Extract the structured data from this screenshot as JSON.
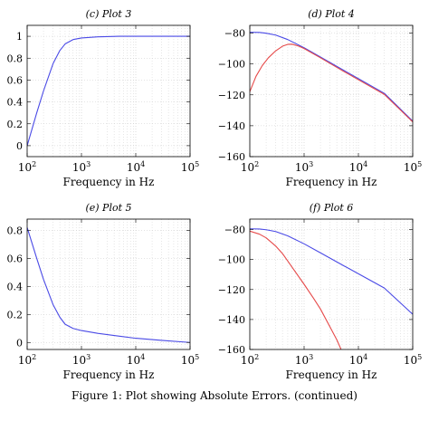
{
  "figure_caption": "Figure 1: Plot showing Absolute Errors. (continued)",
  "chart_data": [
    {
      "id": "plot3",
      "type": "line",
      "title": "(c) Plot 3",
      "xlabel": "Frequency in Hz",
      "ylabel": "",
      "xscale": "log",
      "xlim": [
        100,
        100000
      ],
      "ylim": [
        -0.1,
        1.1
      ],
      "xticks": [
        {
          "v": 100,
          "base": "10",
          "exp": "2"
        },
        {
          "v": 1000,
          "base": "10",
          "exp": "3"
        },
        {
          "v": 10000,
          "base": "10",
          "exp": "4"
        },
        {
          "v": 100000,
          "base": "10",
          "exp": "5"
        }
      ],
      "yticks": [
        {
          "v": 0,
          "label": "0"
        },
        {
          "v": 0.2,
          "label": "0.2"
        },
        {
          "v": 0.4,
          "label": "0.4"
        },
        {
          "v": 0.6,
          "label": "0.6"
        },
        {
          "v": 0.8,
          "label": "0.8"
        },
        {
          "v": 1,
          "label": "1"
        }
      ],
      "grid": true,
      "series": [
        {
          "color": "#4a4ae6",
          "x": [
            100,
            150,
            200,
            300,
            400,
            500,
            700,
            1000,
            2000,
            5000,
            10000,
            100000
          ],
          "y": [
            0.0,
            0.3,
            0.5,
            0.75,
            0.87,
            0.93,
            0.97,
            0.985,
            0.995,
            1.0,
            1.0,
            1.0
          ]
        }
      ]
    },
    {
      "id": "plot4",
      "type": "line",
      "title": "(d) Plot 4",
      "xlabel": "Frequency in Hz",
      "ylabel": "",
      "xscale": "log",
      "xlim": [
        100,
        100000
      ],
      "ylim": [
        -160,
        -75
      ],
      "xticks": [
        {
          "v": 100,
          "base": "10",
          "exp": "2"
        },
        {
          "v": 1000,
          "base": "10",
          "exp": "3"
        },
        {
          "v": 10000,
          "base": "10",
          "exp": "4"
        },
        {
          "v": 100000,
          "base": "10",
          "exp": "5"
        }
      ],
      "yticks": [
        {
          "v": -160,
          "label": "−160"
        },
        {
          "v": -140,
          "label": "−140"
        },
        {
          "v": -120,
          "label": "−120"
        },
        {
          "v": -100,
          "label": "−100"
        },
        {
          "v": -80,
          "label": "−80"
        }
      ],
      "grid": true,
      "series": [
        {
          "color": "#4a4ae6",
          "x": [
            100,
            150,
            200,
            300,
            500,
            1000,
            2000,
            5000,
            10000,
            30000,
            100000
          ],
          "y": [
            -79.5,
            -79.6,
            -80.1,
            -81.3,
            -84.2,
            -89.5,
            -95.5,
            -103.5,
            -109.5,
            -119.0,
            -137.0
          ]
        },
        {
          "color": "#e64a4a",
          "x": [
            100,
            130,
            170,
            220,
            300,
            400,
            500,
            600,
            800,
            1000,
            2000,
            5000,
            10000,
            30000,
            100000
          ],
          "y": [
            -118.0,
            -108.0,
            -101.0,
            -96.0,
            -91.5,
            -88.5,
            -87.3,
            -87.2,
            -88.5,
            -90.0,
            -96.0,
            -104.2,
            -110.2,
            -119.7,
            -137.5
          ]
        }
      ]
    },
    {
      "id": "plot5",
      "type": "line",
      "title": "(e) Plot 5",
      "xlabel": "Frequency in Hz",
      "ylabel": "",
      "xscale": "log",
      "xlim": [
        100,
        100000
      ],
      "ylim": [
        -0.05,
        0.88
      ],
      "xticks": [
        {
          "v": 100,
          "base": "10",
          "exp": "2"
        },
        {
          "v": 1000,
          "base": "10",
          "exp": "3"
        },
        {
          "v": 10000,
          "base": "10",
          "exp": "4"
        },
        {
          "v": 100000,
          "base": "10",
          "exp": "5"
        }
      ],
      "yticks": [
        {
          "v": 0,
          "label": "0"
        },
        {
          "v": 0.2,
          "label": "0.2"
        },
        {
          "v": 0.4,
          "label": "0.4"
        },
        {
          "v": 0.6,
          "label": "0.6"
        },
        {
          "v": 0.8,
          "label": "0.8"
        }
      ],
      "grid": true,
      "series": [
        {
          "color": "#4a4ae6",
          "x": [
            100,
            150,
            200,
            300,
            400,
            500,
            700,
            1000,
            2000,
            5000,
            10000,
            30000,
            100000
          ],
          "y": [
            0.82,
            0.6,
            0.45,
            0.27,
            0.18,
            0.13,
            0.1,
            0.085,
            0.065,
            0.045,
            0.03,
            0.015,
            0.0
          ]
        }
      ]
    },
    {
      "id": "plot6",
      "type": "line",
      "title": "(f) Plot 6",
      "xlabel": "Frequency in Hz",
      "ylabel": "",
      "xscale": "log",
      "xlim": [
        100,
        100000
      ],
      "ylim": [
        -160,
        -73
      ],
      "xticks": [
        {
          "v": 100,
          "base": "10",
          "exp": "2"
        },
        {
          "v": 1000,
          "base": "10",
          "exp": "3"
        },
        {
          "v": 10000,
          "base": "10",
          "exp": "4"
        },
        {
          "v": 100000,
          "base": "10",
          "exp": "5"
        }
      ],
      "yticks": [
        {
          "v": -160,
          "label": "−160"
        },
        {
          "v": -140,
          "label": "−140"
        },
        {
          "v": -120,
          "label": "−120"
        },
        {
          "v": -100,
          "label": "−100"
        },
        {
          "v": -80,
          "label": "−80"
        }
      ],
      "grid": true,
      "series": [
        {
          "color": "#4a4ae6",
          "x": [
            100,
            150,
            200,
            300,
            500,
            1000,
            2000,
            5000,
            10000,
            30000,
            100000
          ],
          "y": [
            -79.5,
            -79.6,
            -80.1,
            -81.3,
            -84.2,
            -89.5,
            -95.5,
            -103.5,
            -109.5,
            -119.0,
            -136.5
          ]
        },
        {
          "color": "#e64a4a",
          "x": [
            100,
            150,
            200,
            300,
            400,
            500,
            700,
            1000,
            1500,
            2000,
            3000,
            4000,
            4800
          ],
          "y": [
            -81.0,
            -83.0,
            -85.5,
            -91.0,
            -96.0,
            -101.0,
            -108.5,
            -116.5,
            -126.0,
            -133.0,
            -145.0,
            -153.5,
            -160.0
          ]
        }
      ]
    }
  ]
}
